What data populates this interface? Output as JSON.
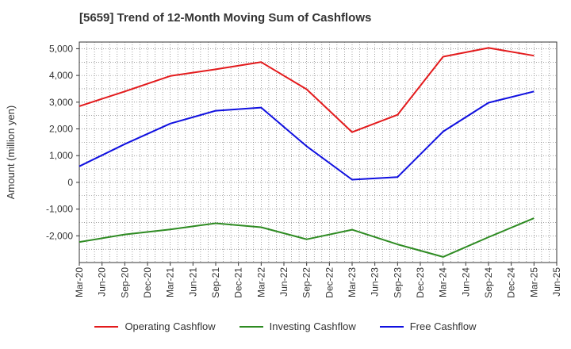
{
  "chart_data": {
    "type": "line",
    "title": "[5659]  Trend of 12-Month Moving Sum of Cashflows",
    "ylabel": "Amount (million yen)",
    "xlabel": "",
    "ylim": [
      -3000,
      5250
    ],
    "yticks": [
      5000,
      4000,
      3000,
      2000,
      1000,
      0,
      -1000,
      -2000
    ],
    "ytick_labels": [
      "5,000",
      "4,000",
      "3,000",
      "2,000",
      "1,000",
      "0",
      "-1,000",
      "-2,000"
    ],
    "x_tick_labels": [
      "Mar-20",
      "Jun-20",
      "Sep-20",
      "Dec-20",
      "Mar-21",
      "Jun-21",
      "Sep-21",
      "Dec-21",
      "Mar-22",
      "Jun-22",
      "Sep-22",
      "Dec-22",
      "Mar-23",
      "Jun-23",
      "Sep-23",
      "Dec-23",
      "Mar-24",
      "Jun-24",
      "Sep-24",
      "Dec-24",
      "Mar-25",
      "Jun-25"
    ],
    "x": [
      "Mar-20",
      "Sep-20",
      "Mar-21",
      "Sep-21",
      "Mar-22",
      "Sep-22",
      "Mar-23",
      "Sep-23",
      "Mar-24",
      "Sep-24",
      "Mar-25"
    ],
    "grid": true,
    "legend_position": "bottom",
    "series": [
      {
        "name": "Operating Cashflow",
        "color": "#e31a1c",
        "values": [
          2850,
          3400,
          3980,
          4230,
          4500,
          3480,
          1880,
          2530,
          4700,
          5030,
          4740
        ]
      },
      {
        "name": "Investing Cashflow",
        "color": "#2e8b22",
        "values": [
          -2230,
          -1950,
          -1760,
          -1530,
          -1680,
          -2130,
          -1770,
          -2320,
          -2790,
          -2050,
          -1340
        ]
      },
      {
        "name": "Free Cashflow",
        "color": "#1010e0",
        "values": [
          600,
          1430,
          2200,
          2680,
          2800,
          1350,
          100,
          200,
          1900,
          2980,
          3400
        ]
      }
    ]
  }
}
